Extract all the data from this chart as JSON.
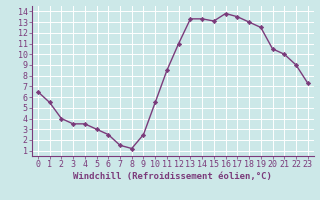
{
  "x": [
    0,
    1,
    2,
    3,
    4,
    5,
    6,
    7,
    8,
    9,
    10,
    11,
    12,
    13,
    14,
    15,
    16,
    17,
    18,
    19,
    20,
    21,
    22,
    23
  ],
  "y": [
    6.5,
    5.5,
    4.0,
    3.5,
    3.5,
    3.0,
    2.5,
    1.5,
    1.2,
    2.5,
    5.5,
    8.5,
    11.0,
    13.3,
    13.3,
    13.1,
    13.8,
    13.5,
    13.0,
    12.5,
    10.5,
    10.0,
    9.0,
    7.3
  ],
  "line_color": "#7B3B7B",
  "marker": "D",
  "marker_size": 2.2,
  "bg_color": "#cce8e8",
  "grid_color": "#b8d8d8",
  "xlabel": "Windchill (Refroidissement éolien,°C)",
  "xlim": [
    -0.5,
    23.5
  ],
  "ylim": [
    0.5,
    14.5
  ],
  "yticks": [
    1,
    2,
    3,
    4,
    5,
    6,
    7,
    8,
    9,
    10,
    11,
    12,
    13,
    14
  ],
  "xticks": [
    0,
    1,
    2,
    3,
    4,
    5,
    6,
    7,
    8,
    9,
    10,
    11,
    12,
    13,
    14,
    15,
    16,
    17,
    18,
    19,
    20,
    21,
    22,
    23
  ],
  "tick_color": "#7B3B7B",
  "spine_color": "#7B3B7B",
  "label_fontsize": 6.5,
  "tick_fontsize": 6.0,
  "line_width": 1.0
}
